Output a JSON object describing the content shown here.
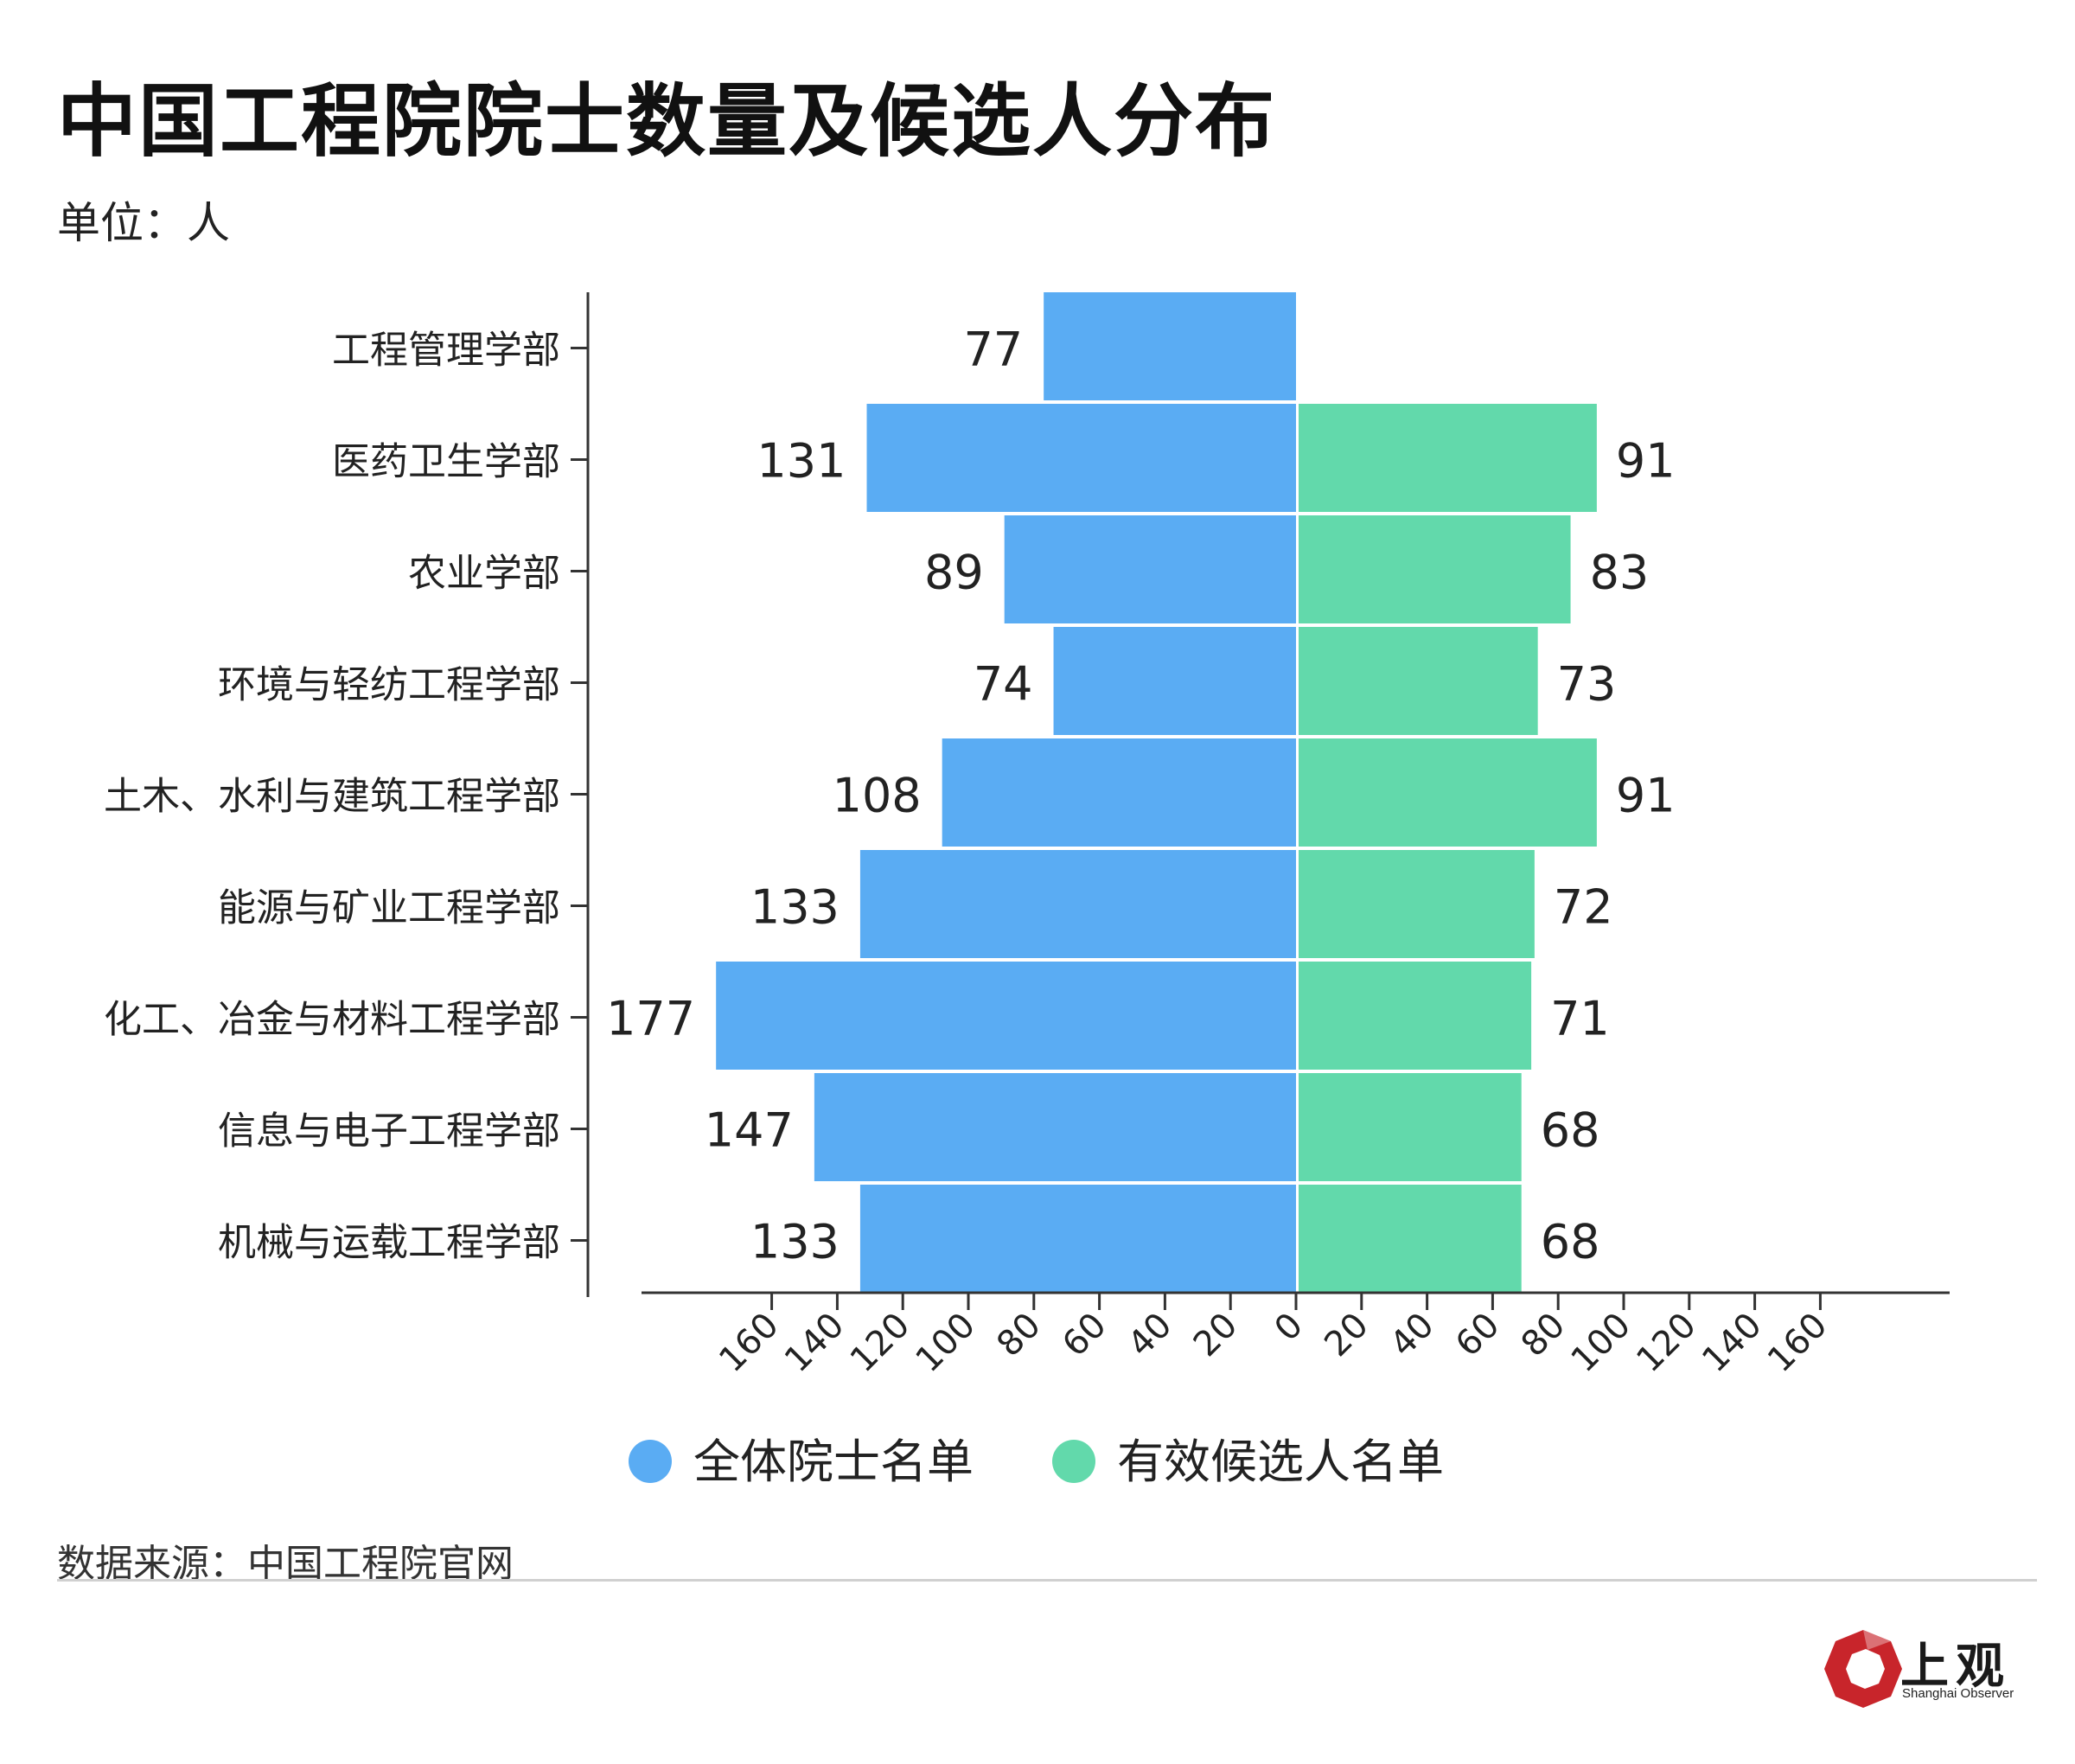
{
  "title": "中国工程院院士数量及候选人分布",
  "unit": "单位：人",
  "source": "数据来源：中国工程院官网",
  "logo": {
    "text": "上观",
    "subtitle": "Shanghai Observer"
  },
  "colors": {
    "left": "#5aacf3",
    "right": "#62d9ab",
    "axis": "#333333",
    "logo_red": "#c8252b"
  },
  "chart_data": {
    "type": "bar",
    "orientation": "horizontal-diverging",
    "categories": [
      "工程管理学部",
      "医药卫生学部",
      "农业学部",
      "环境与轻纺工程学部",
      "土木、水利与建筑工程学部",
      "能源与矿业工程学部",
      "化工、冶金与材料工程学部",
      "信息与电子工程学部",
      "机械与运载工程学部"
    ],
    "series": [
      {
        "name": "全体院士名单",
        "side": "left",
        "values": [
          77,
          131,
          89,
          74,
          108,
          133,
          177,
          147,
          133
        ]
      },
      {
        "name": "有效候选人名单",
        "side": "right",
        "values": [
          null,
          91,
          83,
          73,
          91,
          72,
          71,
          68,
          68
        ]
      }
    ],
    "xlim": [
      -200,
      200
    ],
    "xticks": [
      160,
      140,
      120,
      100,
      80,
      60,
      40,
      20,
      0,
      20,
      40,
      60,
      80,
      100,
      120,
      140,
      160
    ],
    "legend_position": "bottom-center",
    "grid": false
  }
}
